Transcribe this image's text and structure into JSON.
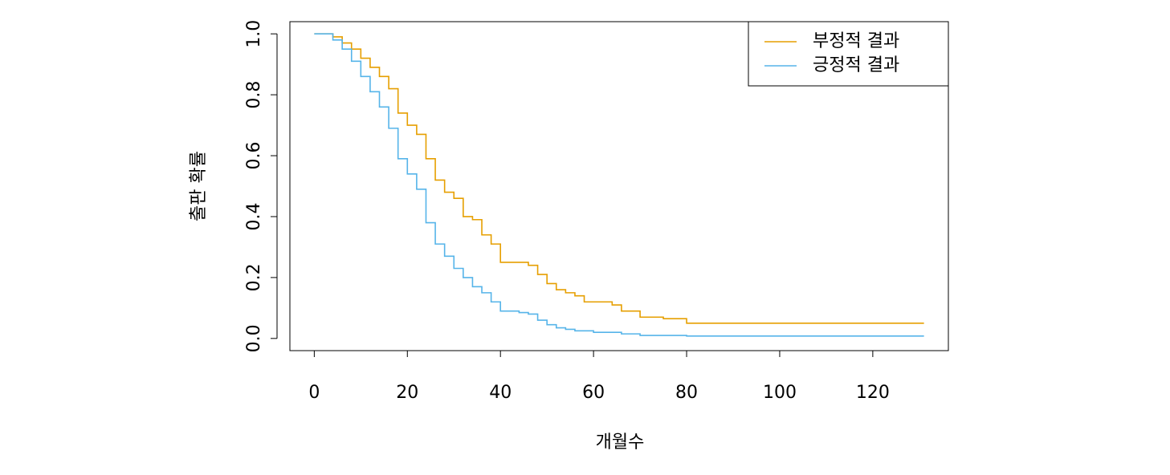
{
  "chart_data": {
    "type": "step",
    "x_label": "개월수",
    "y_label": "출판 확률",
    "x": [
      0,
      2,
      4,
      6,
      8,
      10,
      12,
      14,
      16,
      18,
      20,
      22,
      24,
      26,
      28,
      30,
      32,
      34,
      36,
      38,
      40,
      42,
      44,
      46,
      48,
      50,
      52,
      54,
      56,
      58,
      60,
      62,
      64,
      66,
      68,
      70,
      75,
      80,
      100,
      131
    ],
    "series": [
      {
        "name": "부정적 결과",
        "color": "#E69F00",
        "values": [
          1.0,
          1.0,
          0.99,
          0.97,
          0.95,
          0.92,
          0.89,
          0.86,
          0.82,
          0.74,
          0.7,
          0.67,
          0.59,
          0.52,
          0.48,
          0.46,
          0.4,
          0.39,
          0.34,
          0.31,
          0.25,
          0.25,
          0.25,
          0.24,
          0.21,
          0.18,
          0.16,
          0.15,
          0.14,
          0.12,
          0.12,
          0.12,
          0.11,
          0.09,
          0.09,
          0.07,
          0.065,
          0.05,
          0.05,
          0.05
        ]
      },
      {
        "name": "긍정적 결과",
        "color": "#56B4E9",
        "values": [
          1.0,
          1.0,
          0.98,
          0.95,
          0.91,
          0.86,
          0.81,
          0.76,
          0.69,
          0.59,
          0.54,
          0.49,
          0.38,
          0.31,
          0.27,
          0.23,
          0.2,
          0.17,
          0.15,
          0.12,
          0.09,
          0.09,
          0.085,
          0.08,
          0.06,
          0.045,
          0.035,
          0.03,
          0.025,
          0.025,
          0.02,
          0.02,
          0.02,
          0.015,
          0.015,
          0.01,
          0.01,
          0.008,
          0.008,
          0.008
        ]
      }
    ],
    "xlim": [
      -5.24,
      136.24
    ],
    "xticks": [
      0,
      20,
      40,
      60,
      80,
      100,
      120
    ],
    "ylim": [
      -0.04,
      1.04
    ],
    "yticks": [
      {
        "value": 0,
        "label": "0.0"
      },
      0.2,
      0.4,
      0.6,
      0.8,
      {
        "value": 1,
        "label": "1.0"
      }
    ],
    "legend": "topright"
  }
}
